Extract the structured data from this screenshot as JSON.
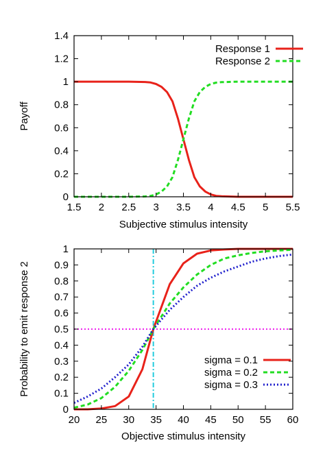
{
  "chart_data": [
    {
      "type": "line",
      "xlabel": "Subjective stimulus intensity",
      "ylabel": "Payoff",
      "xlim": [
        1.5,
        5.5
      ],
      "ylim": [
        0,
        1.4
      ],
      "xticks": [
        "1.5",
        "2",
        "2.5",
        "3",
        "3.5",
        "4",
        "4.5",
        "5",
        "5.5"
      ],
      "yticks": [
        "0",
        "0.2",
        "0.4",
        "0.6",
        "0.8",
        "1",
        "1.2",
        "1.4"
      ],
      "grid": false,
      "legend_position": "top-right",
      "x": [
        1.5,
        2.0,
        2.5,
        2.8,
        2.9,
        3.0,
        3.1,
        3.2,
        3.3,
        3.4,
        3.5,
        3.6,
        3.7,
        3.8,
        3.9,
        4.0,
        4.1,
        4.2,
        4.5,
        5.0,
        5.5
      ],
      "series": [
        {
          "name": "Response 1",
          "color": "#e8221a",
          "style": "solid",
          "values": [
            1.0,
            1.0,
            1.0,
            0.997,
            0.993,
            0.98,
            0.955,
            0.91,
            0.83,
            0.68,
            0.5,
            0.32,
            0.17,
            0.09,
            0.045,
            0.02,
            0.008,
            0.004,
            0.0,
            0.0,
            0.0
          ]
        },
        {
          "name": "Response 2",
          "color": "#22dd22",
          "style": "dashed",
          "values": [
            0.0,
            0.0,
            0.0,
            0.003,
            0.007,
            0.02,
            0.045,
            0.09,
            0.17,
            0.32,
            0.5,
            0.68,
            0.83,
            0.91,
            0.955,
            0.98,
            0.992,
            0.996,
            1.0,
            1.0,
            1.0
          ]
        }
      ]
    },
    {
      "type": "line",
      "xlabel": "Objective stimulus intensity",
      "ylabel": "Probability to emit response 2",
      "xlim": [
        20,
        60
      ],
      "ylim": [
        0,
        1
      ],
      "xticks": [
        "20",
        "25",
        "30",
        "35",
        "40",
        "45",
        "50",
        "55",
        "60"
      ],
      "yticks": [
        "0",
        "0.1",
        "0.2",
        "0.3",
        "0.4",
        "0.5",
        "0.6",
        "0.7",
        "0.8",
        "0.9",
        "1"
      ],
      "grid": false,
      "legend_position": "bottom-right",
      "x": [
        20,
        22.5,
        25,
        27.5,
        30,
        32.5,
        34.5,
        37.5,
        40,
        42.5,
        45,
        47.5,
        50,
        52.5,
        55,
        57.5,
        60
      ],
      "series": [
        {
          "name": "sigma = 0.1",
          "color": "#e8221a",
          "style": "solid",
          "values": [
            0.0,
            0.0,
            0.005,
            0.02,
            0.08,
            0.25,
            0.5,
            0.78,
            0.91,
            0.97,
            0.99,
            0.996,
            1.0,
            1.0,
            1.0,
            1.0,
            1.0
          ]
        },
        {
          "name": "sigma = 0.2",
          "color": "#22dd22",
          "style": "dashed",
          "values": [
            0.01,
            0.03,
            0.07,
            0.14,
            0.24,
            0.37,
            0.5,
            0.66,
            0.76,
            0.84,
            0.9,
            0.94,
            0.96,
            0.975,
            0.985,
            0.99,
            0.995
          ]
        },
        {
          "name": "sigma = 0.3",
          "color": "#1f1fcc",
          "style": "dotted",
          "values": [
            0.04,
            0.08,
            0.13,
            0.2,
            0.28,
            0.39,
            0.5,
            0.62,
            0.7,
            0.77,
            0.82,
            0.86,
            0.89,
            0.92,
            0.94,
            0.955,
            0.965
          ]
        }
      ],
      "reference_lines": [
        {
          "orientation": "horizontal",
          "value": 0.5,
          "color": "#ee22ee",
          "style": "dotted"
        },
        {
          "orientation": "vertical",
          "value": 34.5,
          "color": "#22ccdd",
          "style": "dashdot"
        }
      ]
    }
  ]
}
